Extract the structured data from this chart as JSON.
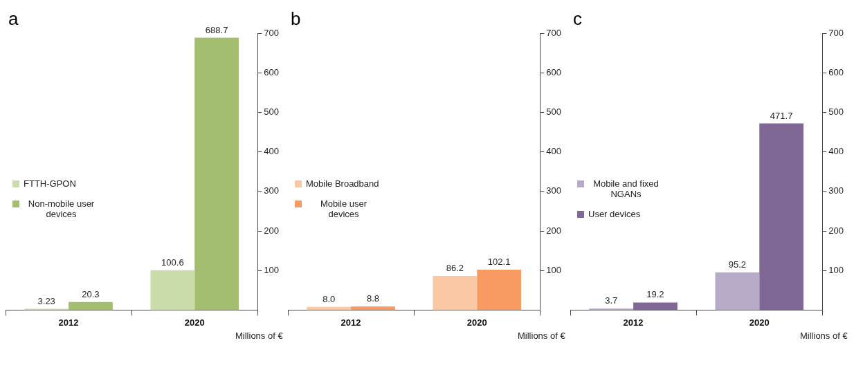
{
  "chart_data": [
    {
      "type": "bar",
      "title": "a",
      "ylabel": "Millions of €",
      "categories": [
        "2012",
        "2020"
      ],
      "ylim": [
        0,
        700
      ],
      "yticks": [
        100,
        200,
        300,
        400,
        500,
        600,
        700
      ],
      "grid": false,
      "legend": "left",
      "series": [
        {
          "name": "FTTH-GPON",
          "color": "#cbdcab",
          "values": [
            3.23,
            100.6
          ],
          "value_labels": [
            "3.23",
            "100.6"
          ]
        },
        {
          "name": "Non-mobile user devices",
          "color": "#a4be70",
          "values": [
            20.3,
            688.7
          ],
          "value_labels": [
            "20.3",
            "688.7"
          ]
        }
      ]
    },
    {
      "type": "bar",
      "title": "b",
      "ylabel": "Millions of €",
      "categories": [
        "2012",
        "2020"
      ],
      "ylim": [
        0,
        700
      ],
      "yticks": [
        100,
        200,
        300,
        400,
        500,
        600,
        700
      ],
      "grid": false,
      "legend": "left",
      "series": [
        {
          "name": "Mobile Broadband",
          "color": "#fbc8a5",
          "values": [
            8.0,
            86.2
          ],
          "value_labels": [
            "8.0",
            "86.2"
          ]
        },
        {
          "name": "Mobile user devices",
          "color": "#f79b62",
          "values": [
            8.8,
            102.1
          ],
          "value_labels": [
            "8.8",
            "102.1"
          ]
        }
      ]
    },
    {
      "type": "bar",
      "title": "c",
      "ylabel": "Millions of €",
      "categories": [
        "2012",
        "2020"
      ],
      "ylim": [
        0,
        700
      ],
      "yticks": [
        100,
        200,
        300,
        400,
        500,
        600,
        700
      ],
      "grid": false,
      "legend": "left",
      "series": [
        {
          "name": "Mobile and fixed NGANs",
          "color": "#b8aac9",
          "values": [
            3.7,
            95.2
          ],
          "value_labels": [
            "3.7",
            "95.2"
          ]
        },
        {
          "name": "User devices",
          "color": "#806896",
          "values": [
            19.2,
            471.7
          ],
          "value_labels": [
            "19.2",
            "471.7"
          ]
        }
      ]
    }
  ]
}
